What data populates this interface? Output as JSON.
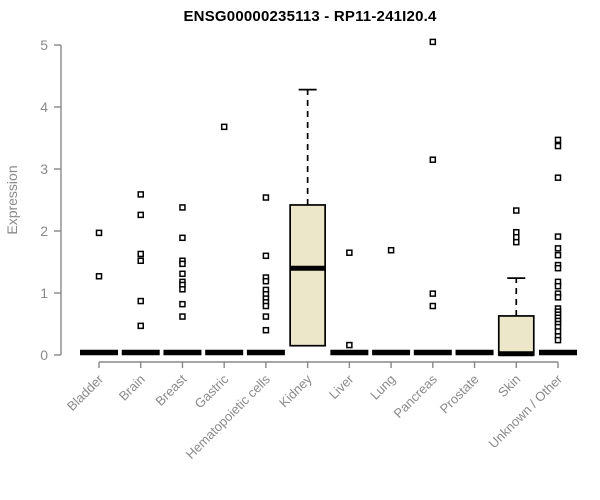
{
  "chart_data": {
    "type": "boxplot",
    "title": "ENSG00000235113 - RP11-241I20.4",
    "ylabel": "Expression",
    "xlabel": "",
    "ylim": [
      0,
      5
    ],
    "yticks": [
      0,
      1,
      2,
      3,
      4,
      5
    ],
    "grid": false,
    "legend": "none",
    "colors": {
      "box_fill": "#ECE7C8",
      "box_stroke": "#000000",
      "median": "#000000",
      "axis": "#888888",
      "axis_text": "#8a8a8a",
      "title_text": "#000000",
      "outlier_fill": "#ffffff",
      "outlier_stroke": "#000000"
    },
    "categories": [
      "Bladder",
      "Brain",
      "Breast",
      "Gastric",
      "Hematopoietic cells",
      "Kidney",
      "Liver",
      "Lung",
      "Pancreas",
      "Prostate",
      "Skin",
      "Unknown / Other"
    ],
    "boxes": [
      {
        "category": "Bladder",
        "q1": 0,
        "median": 0,
        "q3": 0,
        "whisker_low": 0,
        "whisker_high": 0,
        "outliers": [
          1.97,
          1.27
        ]
      },
      {
        "category": "Brain",
        "q1": 0,
        "median": 0,
        "q3": 0,
        "whisker_low": 0,
        "whisker_high": 0,
        "outliers": [
          2.59,
          2.26,
          1.63,
          1.52,
          0.87,
          0.47
        ]
      },
      {
        "category": "Breast",
        "q1": 0,
        "median": 0,
        "q3": 0,
        "whisker_low": 0,
        "whisker_high": 0,
        "outliers": [
          2.38,
          1.89,
          1.52,
          1.47,
          1.31,
          1.18,
          1.13,
          1.06,
          0.82,
          0.62
        ]
      },
      {
        "category": "Gastric",
        "q1": 0,
        "median": 0,
        "q3": 0,
        "whisker_low": 0,
        "whisker_high": 0,
        "outliers": [
          3.68
        ]
      },
      {
        "category": "Hematopoietic cells",
        "q1": 0,
        "median": 0,
        "q3": 0,
        "whisker_low": 0,
        "whisker_high": 0,
        "outliers": [
          2.54,
          1.6,
          1.25,
          1.19,
          1.05,
          0.98,
          0.91,
          0.85,
          0.79,
          0.62,
          0.4
        ]
      },
      {
        "category": "Kidney",
        "q1": 0.15,
        "median": 1.4,
        "q3": 2.42,
        "whisker_low": 0.15,
        "whisker_high": 4.28,
        "outliers": []
      },
      {
        "category": "Liver",
        "q1": 0,
        "median": 0,
        "q3": 0,
        "whisker_low": 0,
        "whisker_high": 0,
        "outliers": [
          1.65,
          0.16
        ]
      },
      {
        "category": "Lung",
        "q1": 0,
        "median": 0,
        "q3": 0,
        "whisker_low": 0,
        "whisker_high": 0,
        "outliers": [
          1.69
        ]
      },
      {
        "category": "Pancreas",
        "q1": 0,
        "median": 0,
        "q3": 0,
        "whisker_low": 0,
        "whisker_high": 0,
        "outliers": [
          5.05,
          3.15,
          0.99,
          0.79
        ]
      },
      {
        "category": "Prostate",
        "q1": 0,
        "median": 0,
        "q3": 0,
        "whisker_low": 0,
        "whisker_high": 0,
        "outliers": []
      },
      {
        "category": "Skin",
        "q1": 0,
        "median": 0.02,
        "q3": 0.63,
        "whisker_low": 0,
        "whisker_high": 1.24,
        "outliers": [
          2.33,
          1.98,
          1.9,
          1.82
        ]
      },
      {
        "category": "Unknown / Other",
        "q1": 0,
        "median": 0,
        "q3": 0,
        "whisker_low": 0,
        "whisker_high": 0,
        "outliers": [
          3.47,
          3.37,
          2.86,
          1.91,
          1.72,
          1.61,
          1.45,
          1.4,
          1.18,
          1.11,
          0.99,
          0.93,
          0.75,
          0.7,
          0.65,
          0.6,
          0.55,
          0.5,
          0.45,
          0.38,
          0.3,
          0.24
        ]
      }
    ]
  }
}
